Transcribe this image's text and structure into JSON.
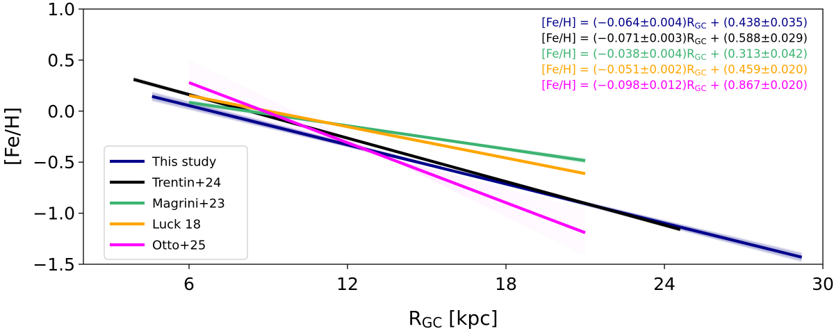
{
  "chart_data": {
    "type": "line",
    "xlabel": "R",
    "xlabel_sub": "GC",
    "xlabel_unit": " [kpc]",
    "ylabel": "[Fe/H]",
    "xlim": [
      2,
      30
    ],
    "ylim": [
      -1.5,
      1.0
    ],
    "x_ticks": [
      6,
      12,
      18,
      24,
      30
    ],
    "x_tick_labels": [
      "6",
      "12",
      "18",
      "24",
      "30"
    ],
    "y_ticks": [
      1.0,
      0.5,
      0.0,
      -0.5,
      -1.0,
      -1.5
    ],
    "y_tick_labels": [
      "1.0",
      "0.5",
      "0.0",
      "−0.5",
      "−1.0",
      "−1.5"
    ],
    "grid": false,
    "legend_position": "lower-left",
    "series": [
      {
        "name": "This study",
        "color": "#00008b",
        "x": [
          4.6,
          29.2
        ],
        "y": [
          0.144,
          -1.431
        ],
        "slope": -0.064,
        "slope_err": 0.004,
        "intercept": 0.438,
        "intercept_err": 0.035
      },
      {
        "name": "Trentin+24",
        "color": "#000000",
        "x": [
          3.9,
          24.6
        ],
        "y": [
          0.311,
          -1.159
        ],
        "slope": -0.071,
        "slope_err": 0.003,
        "intercept": 0.588,
        "intercept_err": 0.029
      },
      {
        "name": "Magrini+23",
        "color": "#3cb371",
        "x": [
          6.0,
          21.0
        ],
        "y": [
          0.085,
          -0.485
        ],
        "slope": -0.038,
        "slope_err": 0.004,
        "intercept": 0.313,
        "intercept_err": 0.042
      },
      {
        "name": "Luck 18",
        "color": "#ffa500",
        "x": [
          6.0,
          21.0
        ],
        "y": [
          0.153,
          -0.612
        ],
        "slope": -0.051,
        "slope_err": 0.002,
        "intercept": 0.459,
        "intercept_err": 0.02
      },
      {
        "name": "Otto+25",
        "color": "#ff00ff",
        "x": [
          6.0,
          21.0
        ],
        "y": [
          0.279,
          -1.191
        ],
        "slope": -0.098,
        "slope_err": 0.012,
        "intercept": 0.867,
        "intercept_err": 0.02
      }
    ],
    "annotations": [
      {
        "color": "#00008b",
        "parts": [
          "[Fe/H] = (−0.064±0.004)R",
          "GC",
          " + (0.438±0.035)"
        ]
      },
      {
        "color": "#000000",
        "parts": [
          "[Fe/H] = (−0.071±0.003)R",
          "GC",
          " + (0.588±0.029)"
        ]
      },
      {
        "color": "#3cb371",
        "parts": [
          "[Fe/H] = (−0.038±0.004)R",
          "GC",
          " + (0.313±0.042)"
        ]
      },
      {
        "color": "#ffa500",
        "parts": [
          "[Fe/H] = (−0.051±0.002)R",
          "GC",
          " + (0.459±0.020)"
        ]
      },
      {
        "color": "#ff00ff",
        "parts": [
          "[Fe/H] = (−0.098±0.012)R",
          "GC",
          " + (0.867±0.020)"
        ]
      }
    ]
  }
}
